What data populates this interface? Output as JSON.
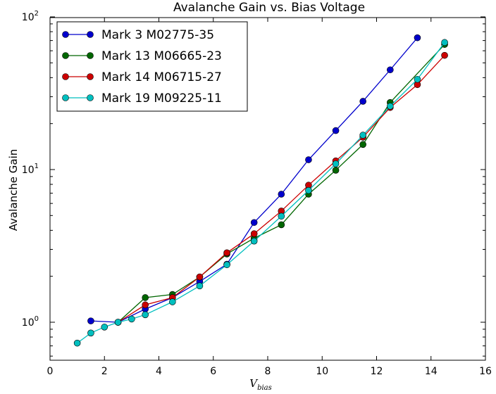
{
  "chart_data": {
    "type": "line",
    "title": "Avalanche Gain vs. Bias Voltage",
    "xlabel_main": "V",
    "xlabel_sub": "bias",
    "ylabel": "Avalanche Gain",
    "xlim": [
      0,
      16
    ],
    "ylim": [
      0.6,
      100
    ],
    "yscale": "log",
    "x_ticks": [
      "0",
      "2",
      "4",
      "6",
      "8",
      "10",
      "12",
      "14",
      "16"
    ],
    "y_ticks": [
      {
        "base": "10",
        "exp": "0"
      },
      {
        "base": "10",
        "exp": "1"
      },
      {
        "base": "10",
        "exp": "2"
      }
    ],
    "grid": false,
    "legend_position": "top-left",
    "series": [
      {
        "name": "Mark 3 M02775-35",
        "color": "#0000cc",
        "x": [
          1.5,
          2.5,
          3.5,
          4.5,
          5.5,
          6.5,
          7.5,
          8.5,
          9.5,
          10.5,
          11.5,
          12.5,
          13.5
        ],
        "y": [
          1.02,
          1.0,
          1.22,
          1.45,
          1.85,
          2.4,
          4.5,
          6.9,
          11.6,
          18.0,
          28.0,
          45.0,
          73.0
        ]
      },
      {
        "name": "Mark 13 M06665-23",
        "color": "#006600",
        "x": [
          2.5,
          3.5,
          4.5,
          5.5,
          6.5,
          7.5,
          8.5,
          9.5,
          10.5,
          11.5,
          12.5,
          14.5
        ],
        "y": [
          1.0,
          1.45,
          1.52,
          1.98,
          2.8,
          3.55,
          4.35,
          6.9,
          9.9,
          14.6,
          27.5,
          66.0
        ]
      },
      {
        "name": "Mark 14 M06715-27",
        "color": "#cc0000",
        "x": [
          2.5,
          3.5,
          4.5,
          5.5,
          6.5,
          7.5,
          8.5,
          9.5,
          10.5,
          11.5,
          12.5,
          13.5,
          14.5
        ],
        "y": [
          1.0,
          1.3,
          1.45,
          1.98,
          2.85,
          3.8,
          5.35,
          7.9,
          11.4,
          16.3,
          25.5,
          36.0,
          56.0
        ]
      },
      {
        "name": "Mark 19 M09225-11",
        "color": "#00bfbf",
        "x": [
          1.0,
          1.5,
          2.0,
          2.5,
          3.0,
          3.5,
          4.5,
          5.5,
          6.5,
          7.5,
          8.5,
          9.5,
          10.5,
          11.5,
          12.5,
          13.5,
          14.5
        ],
        "y": [
          0.73,
          0.85,
          0.93,
          1.0,
          1.05,
          1.12,
          1.36,
          1.73,
          2.38,
          3.4,
          4.95,
          7.3,
          10.9,
          16.8,
          26.0,
          39.0,
          68.0
        ]
      }
    ]
  }
}
